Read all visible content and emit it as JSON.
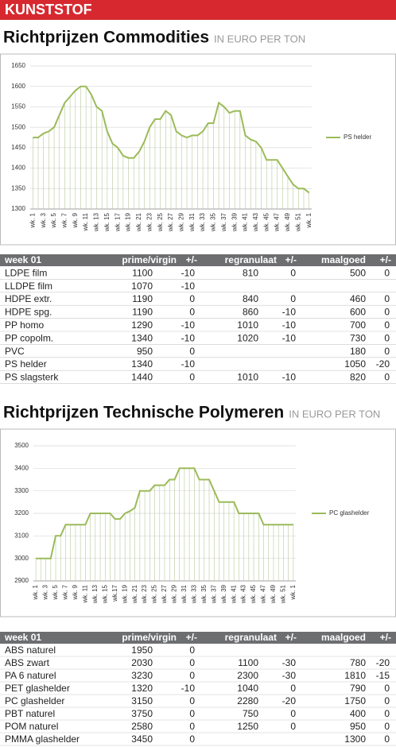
{
  "header": {
    "title": "KUNSTSTOF"
  },
  "chart_data": [
    {
      "type": "line",
      "title": "Richtprijzen Commodities",
      "subtitle": "IN EURO PER TON",
      "categories": [
        "wk. 1",
        null,
        "wk. 3",
        null,
        "wk. 5",
        null,
        "wk. 7",
        null,
        "wk. 9",
        null,
        "wk. 11",
        null,
        "wk. 13",
        null,
        "wk. 15",
        null,
        "wk. 17",
        null,
        "wk. 19",
        null,
        "wk. 21",
        null,
        "wk. 23",
        null,
        "wk. 25",
        null,
        "wk. 27",
        null,
        "wk. 29",
        null,
        "wk. 31",
        null,
        "wk. 33",
        null,
        "wk. 35",
        null,
        "wk. 37",
        null,
        "wk. 39",
        null,
        "wk. 41",
        null,
        "wk. 43",
        null,
        "wk. 45",
        null,
        "wk. 47",
        null,
        "wk. 49",
        null,
        "wk. 51",
        null,
        "wk. 1"
      ],
      "series": [
        {
          "name": "PS helder",
          "color": "#9bbb59",
          "values": [
            1475,
            1475,
            1485,
            1490,
            1500,
            1530,
            1560,
            1575,
            1590,
            1600,
            1600,
            1580,
            1550,
            1540,
            1490,
            1460,
            1450,
            1430,
            1425,
            1425,
            1440,
            1465,
            1500,
            1520,
            1520,
            1540,
            1530,
            1490,
            1480,
            1475,
            1480,
            1480,
            1490,
            1510,
            1510,
            1560,
            1550,
            1535,
            1540,
            1540,
            1480,
            1470,
            1465,
            1450,
            1420,
            1420,
            1420,
            1400,
            1380,
            1360,
            1350,
            1350,
            1340
          ]
        }
      ],
      "ylim": [
        1300,
        1650
      ],
      "yticks": [
        1300,
        1350,
        1400,
        1450,
        1500,
        1550,
        1600,
        1650
      ],
      "drop_lines": true,
      "legend": "right"
    },
    {
      "type": "line",
      "title": "Richtprijzen Technische Polymeren",
      "subtitle": "IN EURO PER TON",
      "categories": [
        "wk. 1",
        null,
        "wk. 3",
        null,
        "wk. 5",
        null,
        "wk. 7",
        null,
        "wk. 9",
        null,
        "wk. 11",
        null,
        "wk. 13",
        null,
        "wk. 15",
        null,
        "wk.17",
        null,
        "wk. 19",
        null,
        "wk. 21",
        null,
        "wk. 23",
        null,
        "wk. 25",
        null,
        "wk. 27",
        null,
        "wk. 29",
        null,
        "wk. 31",
        null,
        "wk. 33",
        null,
        "wk. 35",
        null,
        "wk. 37",
        null,
        "wk. 39",
        null,
        "wk. 41",
        null,
        "wk. 43",
        null,
        "wk. 45",
        null,
        "wk. 47",
        null,
        "wk. 49",
        null,
        "wk. 51",
        null,
        "wk. 1"
      ],
      "series": [
        {
          "name": "PC glashelder",
          "color": "#9bbb59",
          "values": [
            3000,
            3000,
            3000,
            3000,
            3100,
            3100,
            3150,
            3150,
            3150,
            3150,
            3150,
            3200,
            3200,
            3200,
            3200,
            3200,
            3175,
            3175,
            3200,
            3210,
            3225,
            3300,
            3300,
            3300,
            3325,
            3325,
            3325,
            3350,
            3350,
            3400,
            3400,
            3400,
            3400,
            3350,
            3350,
            3350,
            3300,
            3250,
            3250,
            3250,
            3250,
            3200,
            3200,
            3200,
            3200,
            3200,
            3150,
            3150,
            3150,
            3150,
            3150,
            3150,
            3150
          ]
        }
      ],
      "ylim": [
        2900,
        3500
      ],
      "yticks": [
        2900,
        3000,
        3100,
        3200,
        3300,
        3400,
        3500
      ],
      "drop_lines": true,
      "legend": "right"
    }
  ],
  "tables": [
    {
      "columns": [
        "week 01",
        "prime/virgin",
        "+/-",
        "regranulaat",
        "+/-",
        "maalgoed",
        "+/-"
      ],
      "rows": [
        [
          "LDPE film",
          1100,
          -10,
          810,
          0,
          500,
          0
        ],
        [
          "LLDPE film",
          1070,
          -10,
          null,
          null,
          null,
          null
        ],
        [
          "HDPE extr.",
          1190,
          0,
          840,
          0,
          460,
          0
        ],
        [
          "HDPE spg.",
          1190,
          0,
          860,
          -10,
          600,
          0
        ],
        [
          "PP homo",
          1290,
          -10,
          1010,
          -10,
          700,
          0
        ],
        [
          "PP copolm.",
          1340,
          -10,
          1020,
          -10,
          730,
          0
        ],
        [
          "PVC",
          950,
          0,
          null,
          null,
          180,
          0
        ],
        [
          "PS helder",
          1340,
          -10,
          null,
          null,
          1050,
          -20
        ],
        [
          "PS slagsterk",
          1440,
          0,
          1010,
          -10,
          820,
          0
        ]
      ]
    },
    {
      "columns": [
        "week 01",
        "prime/virgin",
        "+/-",
        "regranulaat",
        "+/-",
        "maalgoed",
        "+/-"
      ],
      "rows": [
        [
          "ABS naturel",
          1950,
          0,
          null,
          null,
          null,
          null
        ],
        [
          "ABS zwart",
          2030,
          0,
          1100,
          -30,
          780,
          -20
        ],
        [
          "PA 6 naturel",
          3230,
          0,
          2300,
          -30,
          1810,
          -15
        ],
        [
          "PET glashelder",
          1320,
          -10,
          1040,
          0,
          790,
          0
        ],
        [
          "PC glashelder",
          3150,
          0,
          2280,
          -20,
          1750,
          0
        ],
        [
          "PBT naturel",
          3750,
          0,
          750,
          0,
          400,
          0
        ],
        [
          "POM naturel",
          2580,
          0,
          1250,
          0,
          950,
          0
        ],
        [
          "PMMA glashelder",
          3450,
          0,
          null,
          null,
          1300,
          0
        ]
      ]
    }
  ]
}
